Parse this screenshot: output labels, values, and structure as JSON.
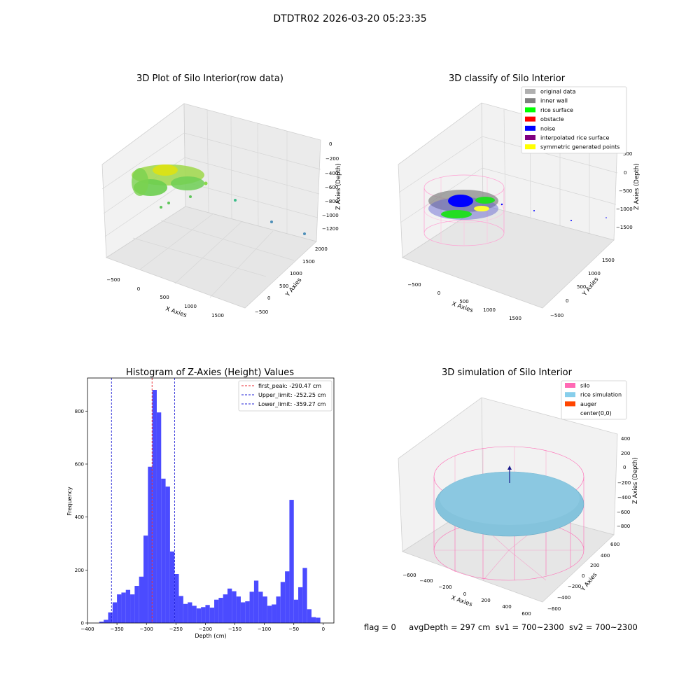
{
  "suptitle": "DTDTR02 2026-03-20 05:23:35",
  "colors": {
    "hist_bar": "#4b4bff",
    "first_peak": "#e8262e",
    "limit_lines": "#1f1fd6",
    "silo_wire": "#ff69b4",
    "rice_sim": "#7ec4dc",
    "auger": "#ff4500",
    "rice_surface": "#00ff00",
    "noise": "#0000ff",
    "obstacle": "#ff0000",
    "interpolated": "#800080",
    "symmetric": "#ffff00",
    "inner_wall": "#808080",
    "original": "#b0b0b0"
  },
  "panels": {
    "raw": {
      "title": "3D Plot of Silo Interior(row data)",
      "xlabel": "X Axies",
      "ylabel": "Y Axies",
      "zlabel": "Z Axies (Depth)",
      "xticks": [
        "−500",
        "0",
        "500",
        "1000",
        "1500"
      ],
      "yticks": [
        "2000",
        "1500",
        "1000",
        "500",
        "0",
        "−500"
      ],
      "zticks": [
        "0",
        "−200",
        "−400",
        "−600",
        "−800",
        "−1000",
        "−1200"
      ]
    },
    "classify": {
      "title": "3D classify of Silo Interior",
      "xlabel": "X Axies",
      "ylabel": "Y Axies",
      "zlabel": "Z Axies (Depth)",
      "xticks": [
        "−500",
        "0",
        "500",
        "1000",
        "1500"
      ],
      "yticks": [
        "1500",
        "1000",
        "500",
        "0",
        "−500"
      ],
      "zticks": [
        "500",
        "0",
        "−500",
        "−1000",
        "−1500"
      ],
      "legend": [
        {
          "label": "original data",
          "color": "#b0b0b0"
        },
        {
          "label": "inner wall",
          "color": "#808080"
        },
        {
          "label": "rice surface",
          "color": "#00ff00"
        },
        {
          "label": "obstacle",
          "color": "#ff0000"
        },
        {
          "label": "noise",
          "color": "#0000ff"
        },
        {
          "label": "interpolated rice surface",
          "color": "#800080"
        },
        {
          "label": "symmetric generated points",
          "color": "#ffff00"
        }
      ]
    },
    "simulation": {
      "title": "3D simulation of Silo Interior",
      "xlabel": "X Axies",
      "ylabel": "Y Axies",
      "zlabel": "Z Axies (Depth)",
      "xticks": [
        "−600",
        "−400",
        "−200",
        "0",
        "200",
        "400",
        "600"
      ],
      "yticks": [
        "600",
        "400",
        "200",
        "0",
        "−200",
        "−400",
        "−600"
      ],
      "zticks": [
        "400",
        "200",
        "0",
        "−200",
        "−400",
        "−600",
        "−800"
      ],
      "legend": [
        {
          "label": "silo",
          "color": "#ff69b4"
        },
        {
          "label": "rice simulation",
          "color": "#87ceeb"
        },
        {
          "label": "auger",
          "color": "#ff4500"
        },
        {
          "label": "center(0,0)",
          "color": "#ffffff"
        }
      ]
    }
  },
  "footer": {
    "flag": "flag = 0",
    "avg": "avgDepth = 297 cm",
    "sv1": "sv1 = 700~2300",
    "sv2": "sv2 = 700~2300"
  },
  "chart_data": {
    "type": "bar",
    "title": "Histogram of Z-Axies (Height) Values",
    "xlabel": "Depth (cm)",
    "ylabel": "Frequency",
    "xlim": [
      -400,
      18
    ],
    "ylim": [
      0,
      925
    ],
    "xticks": [
      -400,
      -350,
      -300,
      -250,
      -200,
      -150,
      -100,
      -50,
      0
    ],
    "yticks": [
      0,
      200,
      400,
      600,
      800
    ],
    "bin_start": -380,
    "bin_width": 7.5,
    "values": [
      5,
      12,
      40,
      78,
      108,
      115,
      125,
      108,
      140,
      175,
      330,
      590,
      880,
      795,
      545,
      515,
      270,
      185,
      102,
      72,
      78,
      65,
      55,
      60,
      68,
      58,
      88,
      95,
      108,
      130,
      120,
      100,
      78,
      82,
      118,
      160,
      118,
      100,
      65,
      70,
      100,
      155,
      195,
      465,
      88,
      135,
      208,
      52,
      22,
      20
    ],
    "vlines": [
      {
        "label": "first_peak: -290.47 cm",
        "x": -290.47,
        "color": "#e8262e"
      },
      {
        "label": "Upper_limit: -252.25 cm",
        "x": -252.25,
        "color": "#1f1fd6"
      },
      {
        "label": "Lower_limit: -359.27 cm",
        "x": -359.27,
        "color": "#1f1fd6"
      }
    ]
  }
}
